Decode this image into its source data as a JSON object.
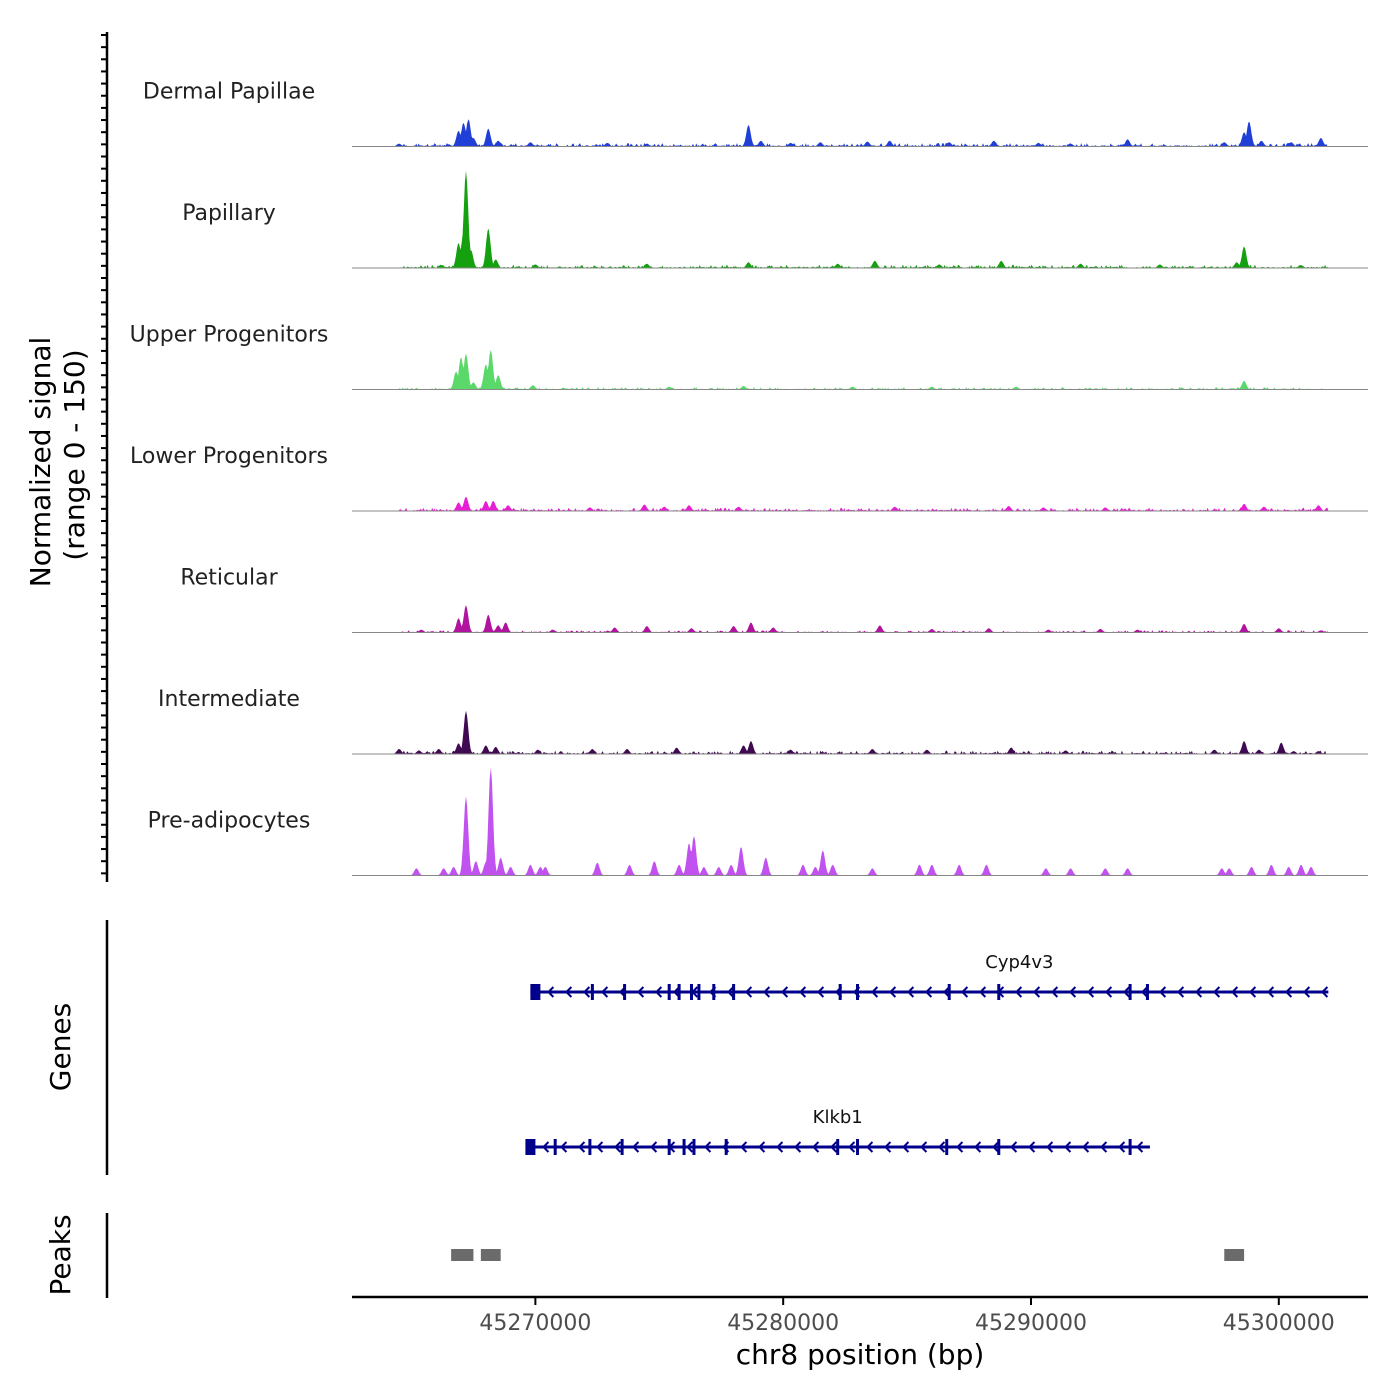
{
  "chart_data": {
    "type": "area",
    "title": "",
    "ylabel_line1": "Normalized signal",
    "ylabel_line2": "(range 0 - 150)",
    "ylim": [
      0,
      150
    ],
    "xlabel": "chr8 position (bp)",
    "xlim": [
      45262600,
      45303600
    ],
    "xticks": [
      45270000,
      45280000,
      45290000,
      45300000
    ],
    "xtick_labels": [
      "45270000",
      "45280000",
      "45290000",
      "45300000"
    ],
    "tracks": [
      {
        "name": "Dermal Papillae",
        "color": "#1f3fd6",
        "peaks": [
          [
            45264500,
            4
          ],
          [
            45266500,
            3
          ],
          [
            45266900,
            22
          ],
          [
            45267100,
            33
          ],
          [
            45267300,
            38
          ],
          [
            45267500,
            12
          ],
          [
            45268100,
            25
          ],
          [
            45268500,
            8
          ],
          [
            45269800,
            6
          ],
          [
            45272900,
            5
          ],
          [
            45274500,
            4
          ],
          [
            45278600,
            30
          ],
          [
            45279100,
            8
          ],
          [
            45280300,
            5
          ],
          [
            45281500,
            6
          ],
          [
            45283400,
            7
          ],
          [
            45284300,
            8
          ],
          [
            45286700,
            6
          ],
          [
            45288500,
            8
          ],
          [
            45290300,
            5
          ],
          [
            45291600,
            4
          ],
          [
            45293900,
            10
          ],
          [
            45297800,
            6
          ],
          [
            45298600,
            20
          ],
          [
            45298800,
            35
          ],
          [
            45299300,
            8
          ],
          [
            45300500,
            6
          ],
          [
            45301700,
            12
          ]
        ],
        "noise_from": 45264500,
        "noise_to": 45302000,
        "noise_amp": 3,
        "seed": 11
      },
      {
        "name": "Papillary",
        "color": "#14a00f",
        "peaks": [
          [
            45266200,
            4
          ],
          [
            45266900,
            35
          ],
          [
            45267100,
            50
          ],
          [
            45267200,
            135
          ],
          [
            45267400,
            25
          ],
          [
            45268100,
            55
          ],
          [
            45268400,
            12
          ],
          [
            45270000,
            5
          ],
          [
            45274500,
            6
          ],
          [
            45278600,
            8
          ],
          [
            45282200,
            6
          ],
          [
            45283700,
            10
          ],
          [
            45286300,
            5
          ],
          [
            45288800,
            10
          ],
          [
            45292000,
            6
          ],
          [
            45295200,
            5
          ],
          [
            45298300,
            8
          ],
          [
            45298600,
            30
          ],
          [
            45300900,
            4
          ]
        ],
        "noise_from": 45264500,
        "noise_to": 45302000,
        "noise_amp": 3,
        "seed": 22
      },
      {
        "name": "Upper Progenitors",
        "color": "#5ad86a",
        "peaks": [
          [
            45266800,
            25
          ],
          [
            45267000,
            45
          ],
          [
            45267200,
            50
          ],
          [
            45267500,
            10
          ],
          [
            45268000,
            35
          ],
          [
            45268200,
            55
          ],
          [
            45268500,
            20
          ],
          [
            45269900,
            6
          ],
          [
            45275400,
            4
          ],
          [
            45278400,
            5
          ],
          [
            45282800,
            4
          ],
          [
            45286000,
            4
          ],
          [
            45289400,
            4
          ],
          [
            45298600,
            12
          ]
        ],
        "noise_from": 45264500,
        "noise_to": 45302000,
        "noise_amp": 2,
        "seed": 33
      },
      {
        "name": "Lower Progenitors",
        "color": "#e61fd2",
        "peaks": [
          [
            45266900,
            12
          ],
          [
            45267200,
            20
          ],
          [
            45268000,
            14
          ],
          [
            45268300,
            14
          ],
          [
            45268900,
            8
          ],
          [
            45272200,
            5
          ],
          [
            45274400,
            9
          ],
          [
            45275200,
            6
          ],
          [
            45276200,
            8
          ],
          [
            45278200,
            6
          ],
          [
            45284500,
            6
          ],
          [
            45289100,
            7
          ],
          [
            45290500,
            5
          ],
          [
            45293000,
            5
          ],
          [
            45298600,
            10
          ],
          [
            45299400,
            6
          ],
          [
            45301600,
            8
          ]
        ],
        "noise_from": 45264500,
        "noise_to": 45302000,
        "noise_amp": 3,
        "seed": 44
      },
      {
        "name": "Reticular",
        "color": "#b0139e",
        "peaks": [
          [
            45265400,
            4
          ],
          [
            45266900,
            20
          ],
          [
            45267200,
            38
          ],
          [
            45268100,
            25
          ],
          [
            45268500,
            10
          ],
          [
            45268800,
            14
          ],
          [
            45270700,
            4
          ],
          [
            45273200,
            7
          ],
          [
            45274500,
            9
          ],
          [
            45276300,
            6
          ],
          [
            45278000,
            9
          ],
          [
            45278700,
            14
          ],
          [
            45279600,
            7
          ],
          [
            45283900,
            10
          ],
          [
            45286000,
            5
          ],
          [
            45288300,
            6
          ],
          [
            45290700,
            4
          ],
          [
            45292800,
            5
          ],
          [
            45294300,
            4
          ],
          [
            45298600,
            12
          ],
          [
            45300000,
            6
          ],
          [
            45301700,
            3
          ]
        ],
        "noise_from": 45264500,
        "noise_to": 45302000,
        "noise_amp": 2,
        "seed": 55
      },
      {
        "name": "Intermediate",
        "color": "#3f0a52",
        "peaks": [
          [
            45264500,
            7
          ],
          [
            45265300,
            5
          ],
          [
            45266100,
            7
          ],
          [
            45266900,
            15
          ],
          [
            45267200,
            60
          ],
          [
            45268000,
            12
          ],
          [
            45268400,
            10
          ],
          [
            45270100,
            6
          ],
          [
            45272300,
            7
          ],
          [
            45273700,
            7
          ],
          [
            45275700,
            9
          ],
          [
            45278400,
            12
          ],
          [
            45278700,
            18
          ],
          [
            45280300,
            6
          ],
          [
            45283600,
            7
          ],
          [
            45285800,
            6
          ],
          [
            45289200,
            9
          ],
          [
            45291400,
            5
          ],
          [
            45297400,
            6
          ],
          [
            45298600,
            18
          ],
          [
            45299200,
            6
          ],
          [
            45300100,
            16
          ],
          [
            45300600,
            4
          ],
          [
            45301600,
            4
          ]
        ],
        "noise_from": 45264500,
        "noise_to": 45302000,
        "noise_amp": 3,
        "seed": 66
      },
      {
        "name": "Pre-adipocytes",
        "color": "#c152f0",
        "peaks": [
          [
            45265200,
            10
          ],
          [
            45266300,
            10
          ],
          [
            45266700,
            12
          ],
          [
            45267200,
            110
          ],
          [
            45267600,
            20
          ],
          [
            45268000,
            18
          ],
          [
            45268200,
            150
          ],
          [
            45268600,
            25
          ],
          [
            45269000,
            12
          ],
          [
            45269800,
            15
          ],
          [
            45270200,
            12
          ],
          [
            45270400,
            12
          ],
          [
            45272500,
            18
          ],
          [
            45273800,
            15
          ],
          [
            45274800,
            20
          ],
          [
            45275800,
            15
          ],
          [
            45276200,
            45
          ],
          [
            45276400,
            55
          ],
          [
            45276800,
            12
          ],
          [
            45277400,
            12
          ],
          [
            45277900,
            15
          ],
          [
            45278300,
            40
          ],
          [
            45279300,
            25
          ],
          [
            45280800,
            15
          ],
          [
            45281300,
            12
          ],
          [
            45281600,
            35
          ],
          [
            45282000,
            15
          ],
          [
            45283600,
            10
          ],
          [
            45285500,
            15
          ],
          [
            45286000,
            15
          ],
          [
            45287100,
            15
          ],
          [
            45288200,
            15
          ],
          [
            45290600,
            10
          ],
          [
            45291600,
            10
          ],
          [
            45293000,
            10
          ],
          [
            45293900,
            10
          ],
          [
            45297700,
            10
          ],
          [
            45298000,
            10
          ],
          [
            45298900,
            12
          ],
          [
            45299700,
            15
          ],
          [
            45300400,
            12
          ],
          [
            45300900,
            15
          ],
          [
            45301300,
            12
          ]
        ],
        "noise_from": 45265000,
        "noise_to": 45302000,
        "noise_amp": 0,
        "seed": 77
      }
    ],
    "genes_label": "Genes",
    "genes": [
      {
        "name": "Cyp4v3",
        "start": 45269800,
        "end": 45302000,
        "strand": "-",
        "exons": [
          45270000,
          45272300,
          45273600,
          45275400,
          45275800,
          45276300,
          45276600,
          45277200,
          45278000,
          45282300,
          45283000,
          45286700,
          45288700,
          45294000,
          45294700
        ]
      },
      {
        "name": "Klkb1",
        "start": 45269600,
        "end": 45294800,
        "strand": "-",
        "exons": [
          45269800,
          45270800,
          45272200,
          45273500,
          45275400,
          45276000,
          45276400,
          45277700,
          45282200,
          45283000,
          45286600,
          45288700,
          45294000
        ]
      }
    ],
    "peaks_label": "Peaks",
    "called_peaks": [
      [
        45266600,
        45267500
      ],
      [
        45267800,
        45268600
      ],
      [
        45297800,
        45298600
      ]
    ]
  }
}
